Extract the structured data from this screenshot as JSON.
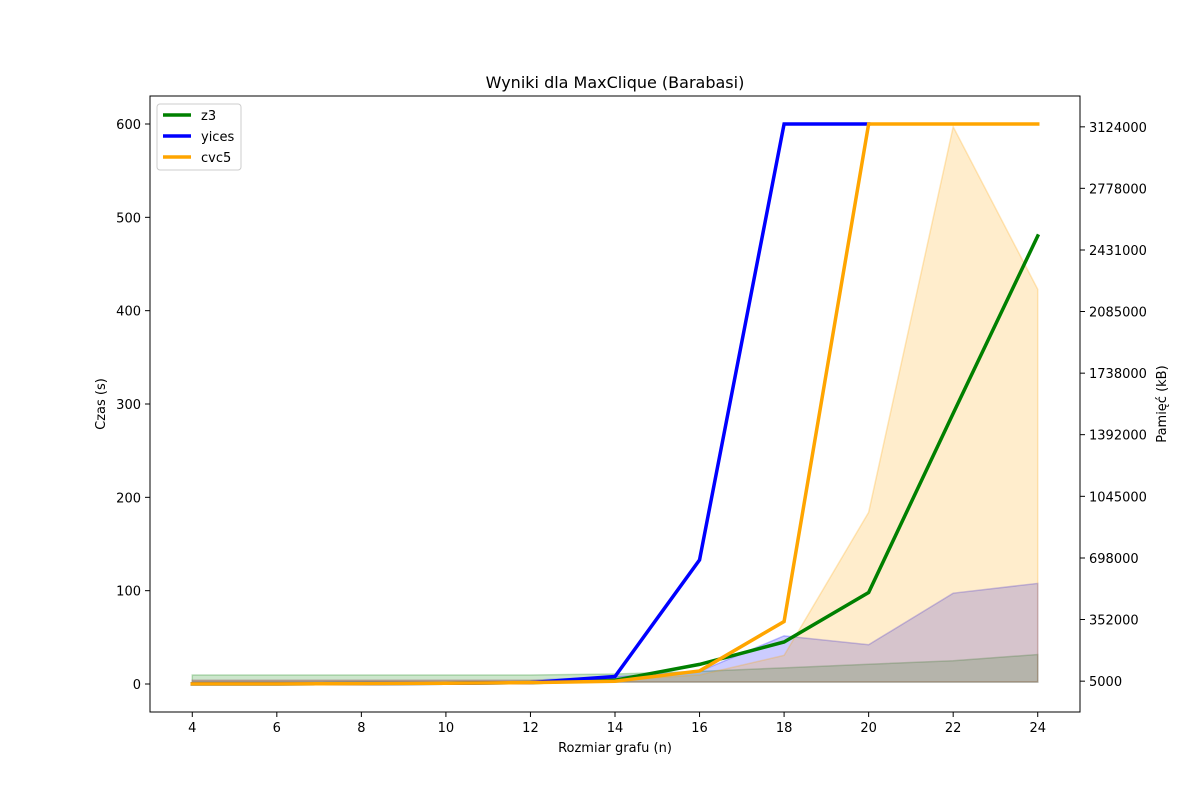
{
  "chart_data": {
    "type": "line",
    "title": "Wyniki dla MaxClique (Barabasi)",
    "xlabel": "Rozmiar grafu (n)",
    "ylabel": "Czas (s)",
    "y2label": "Pamięć (kB)",
    "x": [
      4,
      6,
      8,
      10,
      12,
      14,
      16,
      18,
      20,
      22,
      24
    ],
    "xticks": [
      4,
      6,
      8,
      10,
      12,
      14,
      16,
      18,
      20,
      22,
      24
    ],
    "xlim": [
      3,
      25
    ],
    "ylim": [
      -30,
      630
    ],
    "yticks": [
      0,
      100,
      200,
      300,
      400,
      500,
      600
    ],
    "y2lim": [
      -168500,
      3297500
    ],
    "y2ticks": [
      5000,
      352000,
      698000,
      1045000,
      1392000,
      1738000,
      2085000,
      2431000,
      2778000,
      3124000
    ],
    "y2ticklabels": [
      "5000",
      "352000",
      "698000",
      "1045000",
      "1392000",
      "1738000",
      "2085000",
      "2431000",
      "2778000",
      "3124000"
    ],
    "legend_position": "top-left",
    "series": [
      {
        "name": "z3",
        "color": "#008000",
        "values": [
          0.1,
          0.2,
          0.4,
          0.8,
          1.5,
          4,
          21,
          45,
          98,
          290,
          480
        ]
      },
      {
        "name": "yices",
        "color": "#0000ff",
        "values": [
          0.1,
          0.2,
          0.4,
          0.8,
          1.5,
          8,
          133,
          600,
          600,
          null,
          null
        ]
      },
      {
        "name": "cvc5",
        "color": "#ffa500",
        "values": [
          0.1,
          0.2,
          0.4,
          0.8,
          1.5,
          3,
          14,
          67,
          600,
          600,
          600
        ]
      }
    ],
    "memory_series": [
      {
        "name": "z3",
        "color": "#008000",
        "values": [
          40000,
          40000,
          40000,
          40000,
          40000,
          45000,
          60000,
          80000,
          100000,
          120000,
          155000
        ]
      },
      {
        "name": "yices",
        "color": "#0000ff",
        "values": [
          10000,
          10000,
          10000,
          10000,
          10000,
          30000,
          60000,
          260000,
          210000,
          500000,
          555000
        ]
      },
      {
        "name": "cvc5",
        "color": "#ffa500",
        "values": [
          10000,
          10000,
          10000,
          10000,
          10000,
          10000,
          40000,
          150000,
          955000,
          3124000,
          2210000
        ]
      }
    ]
  }
}
